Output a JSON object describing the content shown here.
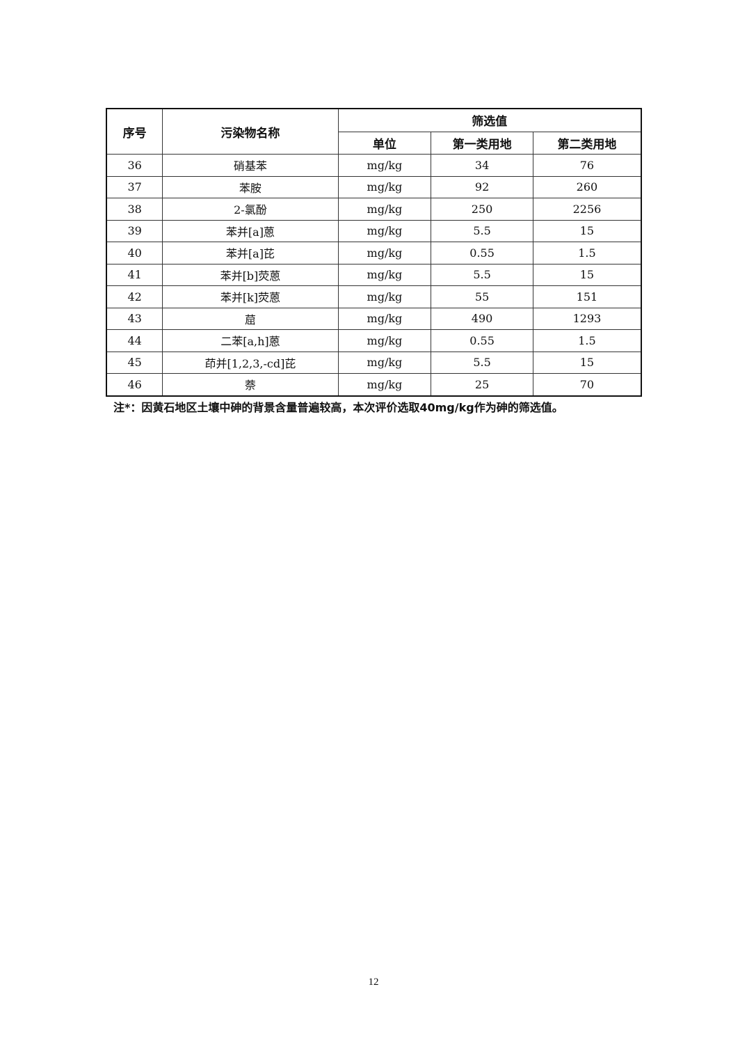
{
  "table": {
    "headers": {
      "index": "序号",
      "name": "污染物名称",
      "group": "筛选值",
      "unit": "单位",
      "class1": "第一类用地",
      "class2": "第二类用地"
    },
    "rows": [
      [
        "36",
        "硝基苯",
        "mg/kg",
        "34",
        "76"
      ],
      [
        "37",
        "苯胺",
        "mg/kg",
        "92",
        "260"
      ],
      [
        "38",
        "2-氯酚",
        "mg/kg",
        "250",
        "2256"
      ],
      [
        "39",
        "苯并[a]蒽",
        "mg/kg",
        "5.5",
        "15"
      ],
      [
        "40",
        "苯并[a]芘",
        "mg/kg",
        "0.55",
        "1.5"
      ],
      [
        "41",
        "苯并[b]荧蒽",
        "mg/kg",
        "5.5",
        "15"
      ],
      [
        "42",
        "苯并[k]荧蒽",
        "mg/kg",
        "55",
        "151"
      ],
      [
        "43",
        "䓛",
        "mg/kg",
        "490",
        "1293"
      ],
      [
        "44",
        "二苯[a,h]蒽",
        "mg/kg",
        "0.55",
        "1.5"
      ],
      [
        "45",
        "茚并[1,2,3,-cd]芘",
        "mg/kg",
        "5.5",
        "15"
      ],
      [
        "46",
        "萘",
        "mg/kg",
        "25",
        "70"
      ]
    ]
  },
  "note": "注*：因黄石地区土壤中砷的背景含量普遍较高，本次评价选取40mg/kg作为砷的筛选值。",
  "page_number": "12"
}
